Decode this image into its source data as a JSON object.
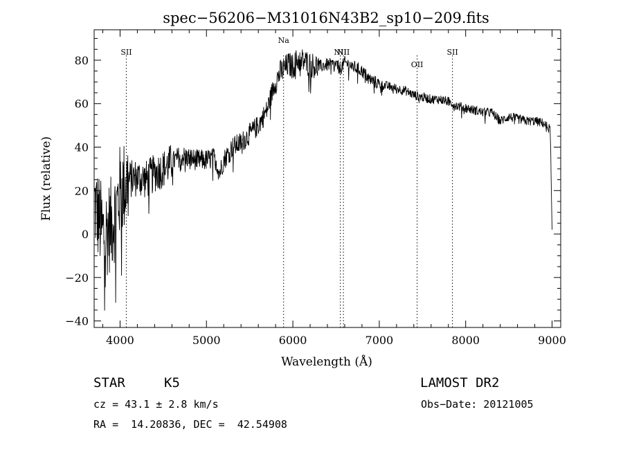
{
  "chart_data": {
    "type": "line",
    "title": "spec−56206−M31016N43B2_sp10−209.fits",
    "xlabel": "Wavelength (Å)",
    "ylabel": "Flux (relative)",
    "xlim": [
      3700,
      9100
    ],
    "ylim": [
      -43,
      94
    ],
    "xticks": [
      4000,
      5000,
      6000,
      7000,
      8000,
      9000
    ],
    "yticks": [
      -40,
      -20,
      0,
      20,
      40,
      60,
      80
    ],
    "ytick_labels": [
      "−40",
      "−20",
      "0",
      "20",
      "40",
      "60",
      "80"
    ],
    "grid": false,
    "series": [
      {
        "x": [
          3700,
          3750,
          3800,
          3850,
          3900,
          3950,
          4000,
          4050,
          4100,
          4200,
          4300,
          4400,
          4500,
          4600,
          4700,
          4800,
          4900,
          5000,
          5100,
          5150,
          5200,
          5300,
          5400,
          5500,
          5600,
          5700,
          5750,
          5800,
          5850,
          5900,
          5950,
          6000,
          6050,
          6100,
          6200,
          6300,
          6400,
          6500,
          6550,
          6600,
          6700,
          6800,
          6900,
          7000,
          7100,
          7200,
          7300,
          7400,
          7500,
          7600,
          7700,
          7800,
          7900,
          8000,
          8100,
          8200,
          8300,
          8400,
          8500,
          8600,
          8700,
          8800,
          8900,
          8980,
          9000
        ],
        "y": [
          15,
          8,
          0,
          2,
          5,
          10,
          20,
          22,
          25,
          26,
          25,
          28,
          30,
          33,
          36,
          35,
          34,
          34,
          35,
          28,
          34,
          40,
          42,
          46,
          50,
          57,
          64,
          70,
          74,
          76,
          78,
          77,
          80,
          80,
          78,
          77,
          78,
          78,
          76,
          79,
          77,
          75,
          71,
          69,
          68,
          67,
          66,
          64,
          63,
          62,
          62,
          61,
          59,
          58,
          57,
          56,
          56,
          52,
          54,
          53,
          52,
          52,
          51,
          48,
          2
        ]
      }
    ],
    "lines": [
      {
        "label": "SII",
        "x": 4072
      },
      {
        "label": "Na",
        "x": 5893
      },
      {
        "label": "NII",
        "x": 6549
      },
      {
        "label": "NII",
        "x": 6585
      },
      {
        "label": "OII",
        "x": 7438
      },
      {
        "label": "SII",
        "x": 7847
      }
    ]
  },
  "info": {
    "objtype": "STAR",
    "subclass": "K5",
    "survey": "LAMOST DR2",
    "cz_line": "cz = 43.1 ± 2.8 km/s",
    "obsdate_line": "Obs−Date: 20121005",
    "coord_line": "RA =  14.20836, DEC =  42.54908"
  }
}
